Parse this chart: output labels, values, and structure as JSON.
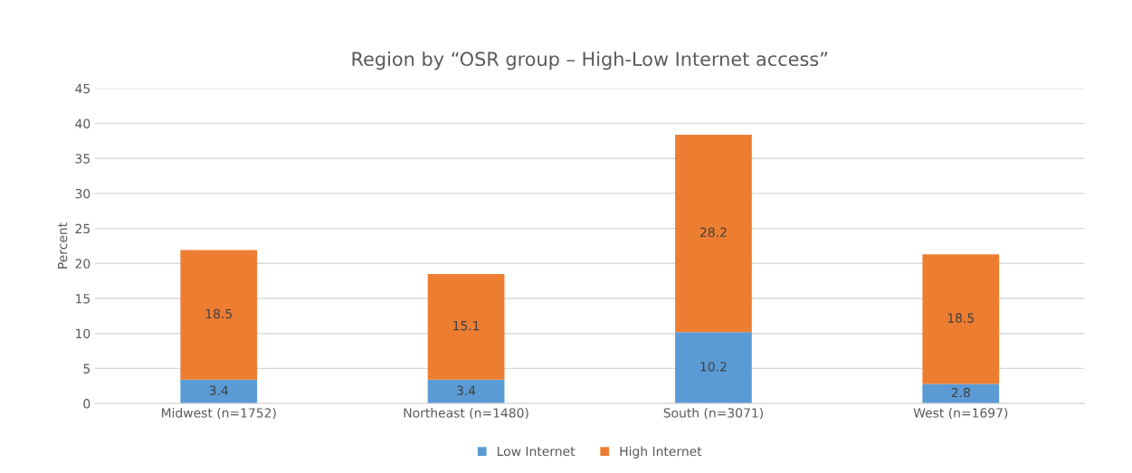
{
  "chart_data": {
    "type": "bar",
    "title": "Region by “OSR group – High-Low Internet access”",
    "ylabel": "Percent",
    "categories": [
      "Midwest (n=1752)",
      "Northeast (n=1480)",
      "South (n=3071)",
      "West (n=1697)"
    ],
    "stacked": true,
    "series": [
      {
        "name": "Low Internet",
        "color": "#5b9bd5",
        "values": [
          3.4,
          3.4,
          10.2,
          2.8
        ]
      },
      {
        "name": "High Internet",
        "color": "#ed7d31",
        "values": [
          18.5,
          15.1,
          28.2,
          18.5
        ]
      }
    ],
    "ylim": [
      0,
      45
    ],
    "yticks": [
      0,
      5,
      10,
      15,
      20,
      25,
      30,
      35,
      40,
      45
    ],
    "grid": "y",
    "legend": "bottom",
    "data_labels": true
  }
}
